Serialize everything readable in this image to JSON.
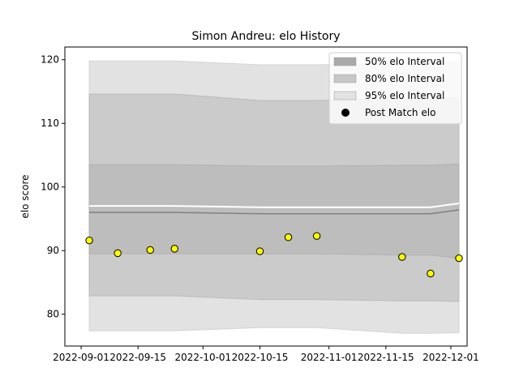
{
  "chart_data": {
    "type": "line",
    "title": "Simon Andreu: elo History",
    "xlabel": "",
    "ylabel": "elo score",
    "xlim": [
      "2022-08-28",
      "2022-12-05"
    ],
    "ylim": [
      75,
      122
    ],
    "x_ticks": [
      "2022-09-01",
      "2022-09-15",
      "2022-10-01",
      "2022-10-15",
      "2022-11-01",
      "2022-11-15",
      "2022-12-01"
    ],
    "y_ticks": [
      80,
      90,
      100,
      110,
      120
    ],
    "grid": false,
    "legend_placement": "top-right",
    "legend": [
      {
        "label": "50% elo Interval",
        "kind": "patch",
        "color": "#a9a9a9"
      },
      {
        "label": "80% elo Interval",
        "kind": "patch",
        "color": "#c6c6c6"
      },
      {
        "label": "95% elo Interval",
        "kind": "patch",
        "color": "#e2e2e2"
      },
      {
        "label": "Post Match elo",
        "kind": "marker",
        "color": "#000000"
      }
    ],
    "colors": {
      "band95": "#e2e2e2",
      "band80": "#cbcbcb",
      "band50": "#bdbdbd",
      "mean_line": "#808080",
      "gap_line": "#ffffff",
      "points": "#ffff00"
    },
    "x": [
      "2022-09-03",
      "2022-09-10",
      "2022-09-18",
      "2022-09-24",
      "2022-10-15",
      "2022-10-22",
      "2022-10-29",
      "2022-11-19",
      "2022-11-26",
      "2022-12-03"
    ],
    "intervals": {
      "p95_upper": [
        119.8,
        119.8,
        119.8,
        119.8,
        119.2,
        119.2,
        119.2,
        119.5,
        119.5,
        119.8
      ],
      "p80_upper": [
        114.6,
        114.6,
        114.6,
        114.6,
        113.6,
        113.6,
        113.6,
        113.8,
        113.8,
        114.0
      ],
      "p50_upper": [
        103.5,
        103.5,
        103.5,
        103.5,
        103.3,
        103.3,
        103.3,
        103.4,
        103.4,
        103.6
      ],
      "mean": [
        96.0,
        96.0,
        96.0,
        96.0,
        95.8,
        95.8,
        95.8,
        95.8,
        95.8,
        96.4
      ],
      "p50_lower": [
        89.5,
        89.5,
        89.5,
        89.5,
        89.5,
        89.5,
        89.5,
        89.3,
        89.3,
        88.8
      ],
      "p80_lower": [
        82.9,
        82.9,
        82.9,
        82.9,
        82.3,
        82.3,
        82.3,
        82.1,
        82.1,
        82.0
      ],
      "p95_lower": [
        77.4,
        77.4,
        77.4,
        77.4,
        77.9,
        77.9,
        77.9,
        77.0,
        77.0,
        77.1
      ]
    },
    "series": [
      {
        "name": "Post Match elo",
        "type": "scatter",
        "values": [
          91.6,
          89.6,
          90.1,
          90.3,
          89.9,
          92.1,
          92.3,
          89.0,
          86.4,
          88.8
        ]
      }
    ]
  }
}
